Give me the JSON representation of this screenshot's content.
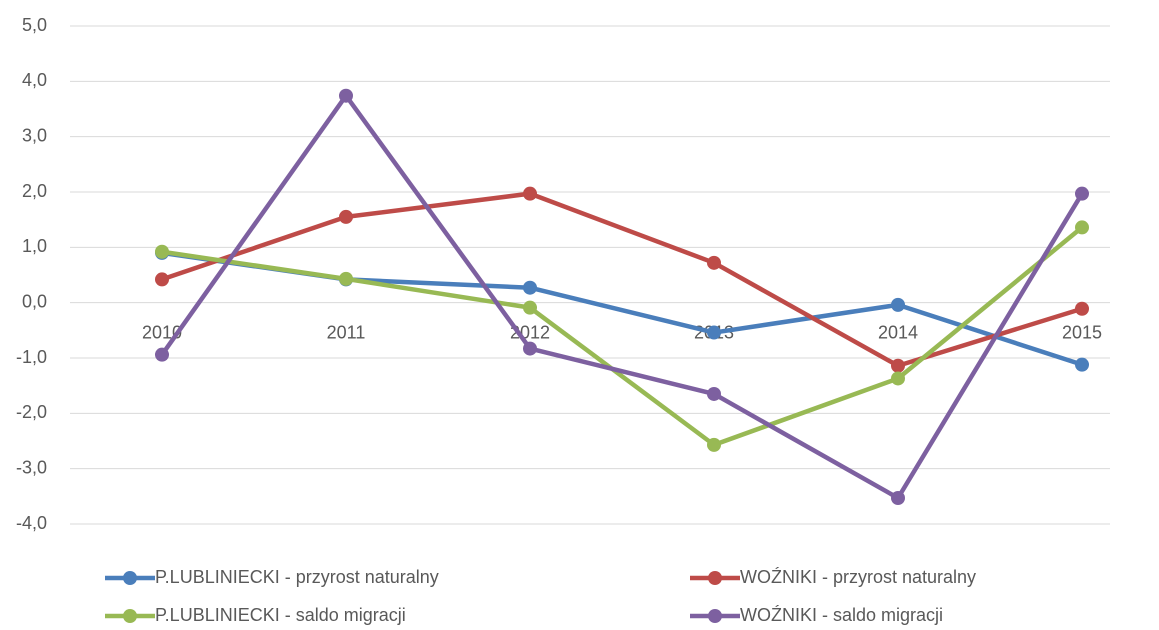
{
  "chart_data": {
    "type": "line",
    "categories": [
      "2010",
      "2011",
      "2012",
      "2013",
      "2014",
      "2015"
    ],
    "series": [
      {
        "name": "P.LUBLINIECKI - przyrost naturalny",
        "color": "#4a7ebb",
        "values": [
          0.9,
          0.42,
          0.27,
          -0.54,
          -0.04,
          -1.12
        ]
      },
      {
        "name": "WOŹNIKI - przyrost naturalny",
        "color": "#be4b48",
        "values": [
          0.42,
          1.55,
          1.97,
          0.72,
          -1.14,
          -0.11
        ]
      },
      {
        "name": "P.LUBLINIECKI - saldo migracji",
        "color": "#98b954",
        "values": [
          0.92,
          0.43,
          -0.09,
          -2.57,
          -1.37,
          1.36
        ]
      },
      {
        "name": "WOŹNIKI - saldo migracji",
        "color": "#7d60a0",
        "values": [
          -0.94,
          3.74,
          -0.83,
          -1.65,
          -3.53,
          1.97
        ]
      }
    ],
    "ylim": [
      -4,
      5
    ],
    "yticks": [
      {
        "value": -4,
        "label": "-4,0"
      },
      {
        "value": -3,
        "label": "-3,0"
      },
      {
        "value": -2,
        "label": "-2,0"
      },
      {
        "value": -1,
        "label": "-1,0"
      },
      {
        "value": 0,
        "label": "0,0"
      },
      {
        "value": 1,
        "label": "1,0"
      },
      {
        "value": 2,
        "label": "2,0"
      },
      {
        "value": 3,
        "label": "3,0"
      },
      {
        "value": 4,
        "label": "4,0"
      },
      {
        "value": 5,
        "label": "5,0"
      }
    ],
    "grid": true,
    "legend": "bottom"
  }
}
